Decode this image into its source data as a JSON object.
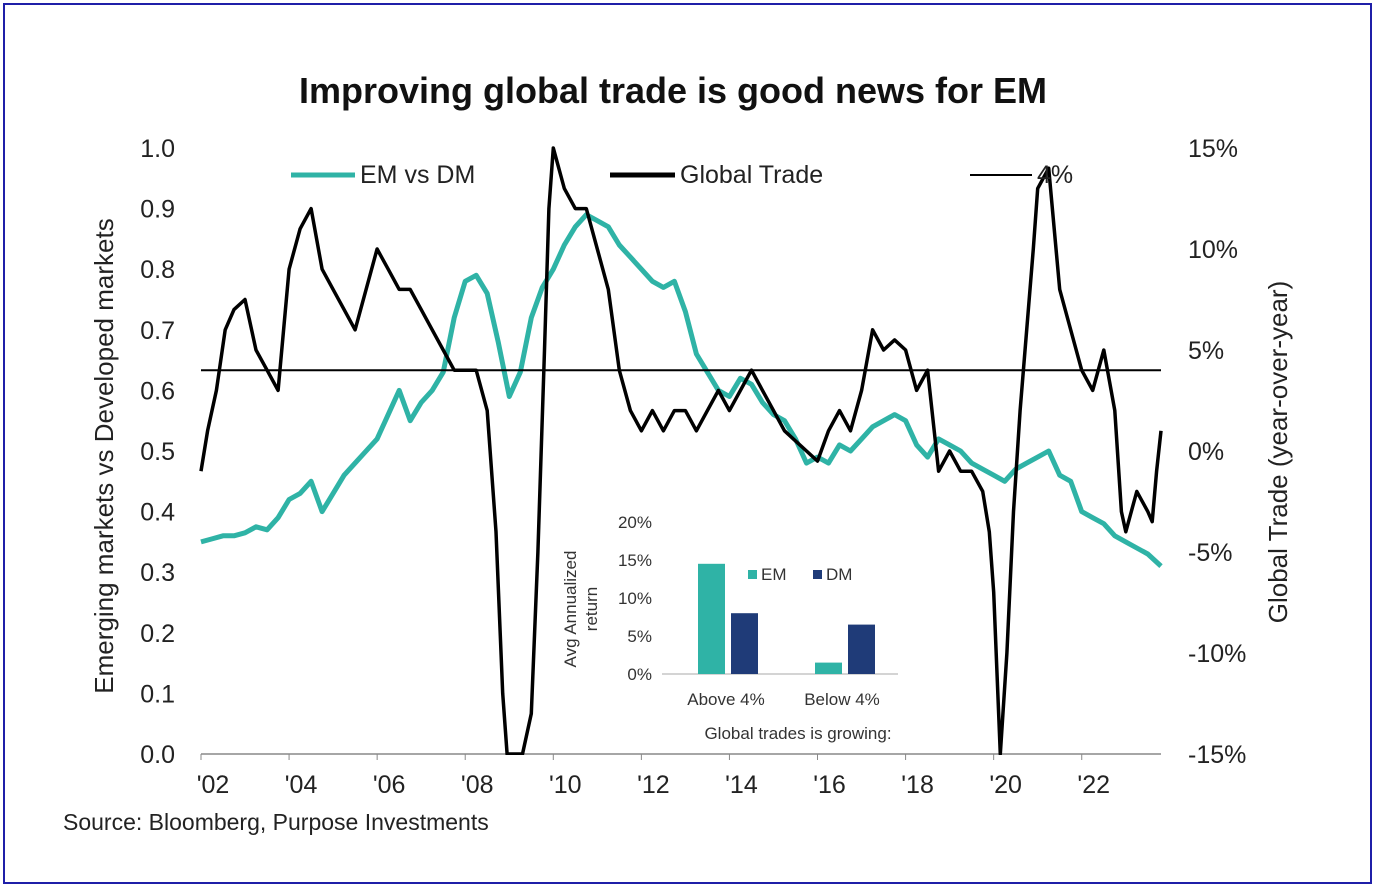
{
  "colors": {
    "em": "#2fb3a6",
    "dm": "#1f3b78",
    "trade": "#000000",
    "frame": "#1f1fa8"
  },
  "source": "Source: Bloomberg, Purpose Investments",
  "chart_data": [
    {
      "type": "line",
      "title": "Improving global trade is good news for EM",
      "ylabel_left": "Emerging markets vs Developed markets",
      "ylabel_right": "Global Trade (year-over-year)",
      "x_ticks": [
        "'02",
        "'04",
        "'06",
        "'08",
        "'10",
        "'12",
        "'14",
        "'16",
        "'18",
        "'20",
        "'22"
      ],
      "x_tick_years": [
        2002,
        2004,
        2006,
        2008,
        2010,
        2012,
        2014,
        2016,
        2018,
        2020,
        2022
      ],
      "xlim": [
        2002,
        2023.8
      ],
      "ylim_left": [
        0.0,
        1.0
      ],
      "ylim_right": [
        -15,
        15
      ],
      "y_ticks_left": [
        "0.0",
        "0.1",
        "0.2",
        "0.3",
        "0.4",
        "0.5",
        "0.6",
        "0.7",
        "0.8",
        "0.9",
        "1.0"
      ],
      "y_ticks_right": [
        "-15%",
        "-10%",
        "-5%",
        "0%",
        "5%",
        "10%",
        "15%"
      ],
      "legend": [
        "EM vs DM",
        "Global Trade",
        "4%"
      ],
      "legend_position": "top",
      "grid": false,
      "series": [
        {
          "name": "EM vs DM",
          "axis": "left",
          "points": [
            [
              2002.0,
              0.35
            ],
            [
              2002.25,
              0.355
            ],
            [
              2002.5,
              0.36
            ],
            [
              2002.75,
              0.36
            ],
            [
              2003.0,
              0.365
            ],
            [
              2003.25,
              0.375
            ],
            [
              2003.5,
              0.37
            ],
            [
              2003.75,
              0.39
            ],
            [
              2004.0,
              0.42
            ],
            [
              2004.25,
              0.43
            ],
            [
              2004.5,
              0.45
            ],
            [
              2004.75,
              0.4
            ],
            [
              2005.0,
              0.43
            ],
            [
              2005.25,
              0.46
            ],
            [
              2005.5,
              0.48
            ],
            [
              2005.75,
              0.5
            ],
            [
              2006.0,
              0.52
            ],
            [
              2006.25,
              0.56
            ],
            [
              2006.5,
              0.6
            ],
            [
              2006.75,
              0.55
            ],
            [
              2007.0,
              0.58
            ],
            [
              2007.25,
              0.6
            ],
            [
              2007.5,
              0.63
            ],
            [
              2007.75,
              0.72
            ],
            [
              2008.0,
              0.78
            ],
            [
              2008.25,
              0.79
            ],
            [
              2008.5,
              0.76
            ],
            [
              2008.75,
              0.68
            ],
            [
              2009.0,
              0.59
            ],
            [
              2009.25,
              0.63
            ],
            [
              2009.5,
              0.72
            ],
            [
              2009.75,
              0.77
            ],
            [
              2010.0,
              0.8
            ],
            [
              2010.25,
              0.84
            ],
            [
              2010.5,
              0.87
            ],
            [
              2010.75,
              0.89
            ],
            [
              2011.0,
              0.88
            ],
            [
              2011.25,
              0.87
            ],
            [
              2011.5,
              0.84
            ],
            [
              2011.75,
              0.82
            ],
            [
              2012.0,
              0.8
            ],
            [
              2012.25,
              0.78
            ],
            [
              2012.5,
              0.77
            ],
            [
              2012.75,
              0.78
            ],
            [
              2013.0,
              0.73
            ],
            [
              2013.25,
              0.66
            ],
            [
              2013.5,
              0.63
            ],
            [
              2013.75,
              0.6
            ],
            [
              2014.0,
              0.59
            ],
            [
              2014.25,
              0.62
            ],
            [
              2014.5,
              0.61
            ],
            [
              2014.75,
              0.58
            ],
            [
              2015.0,
              0.56
            ],
            [
              2015.25,
              0.55
            ],
            [
              2015.5,
              0.52
            ],
            [
              2015.75,
              0.48
            ],
            [
              2016.0,
              0.49
            ],
            [
              2016.25,
              0.48
            ],
            [
              2016.5,
              0.51
            ],
            [
              2016.75,
              0.5
            ],
            [
              2017.0,
              0.52
            ],
            [
              2017.25,
              0.54
            ],
            [
              2017.5,
              0.55
            ],
            [
              2017.75,
              0.56
            ],
            [
              2018.0,
              0.55
            ],
            [
              2018.25,
              0.51
            ],
            [
              2018.5,
              0.49
            ],
            [
              2018.75,
              0.52
            ],
            [
              2019.0,
              0.51
            ],
            [
              2019.25,
              0.5
            ],
            [
              2019.5,
              0.48
            ],
            [
              2019.75,
              0.47
            ],
            [
              2020.0,
              0.46
            ],
            [
              2020.25,
              0.45
            ],
            [
              2020.5,
              0.47
            ],
            [
              2020.75,
              0.48
            ],
            [
              2021.0,
              0.49
            ],
            [
              2021.25,
              0.5
            ],
            [
              2021.5,
              0.46
            ],
            [
              2021.75,
              0.45
            ],
            [
              2022.0,
              0.4
            ],
            [
              2022.25,
              0.39
            ],
            [
              2022.5,
              0.38
            ],
            [
              2022.75,
              0.36
            ],
            [
              2023.0,
              0.35
            ],
            [
              2023.25,
              0.34
            ],
            [
              2023.5,
              0.33
            ],
            [
              2023.8,
              0.31
            ]
          ]
        },
        {
          "name": "Global Trade",
          "axis": "right",
          "points": [
            [
              2002.0,
              -1
            ],
            [
              2002.15,
              1
            ],
            [
              2002.35,
              3
            ],
            [
              2002.55,
              6
            ],
            [
              2002.75,
              7
            ],
            [
              2003.0,
              7.5
            ],
            [
              2003.25,
              5
            ],
            [
              2003.5,
              4
            ],
            [
              2003.75,
              3
            ],
            [
              2004.0,
              9
            ],
            [
              2004.25,
              11
            ],
            [
              2004.5,
              12
            ],
            [
              2004.75,
              9
            ],
            [
              2005.0,
              8
            ],
            [
              2005.25,
              7
            ],
            [
              2005.5,
              6
            ],
            [
              2005.75,
              8
            ],
            [
              2006.0,
              10
            ],
            [
              2006.25,
              9
            ],
            [
              2006.5,
              8
            ],
            [
              2006.75,
              8
            ],
            [
              2007.0,
              7
            ],
            [
              2007.25,
              6
            ],
            [
              2007.5,
              5
            ],
            [
              2007.75,
              4
            ],
            [
              2008.0,
              4
            ],
            [
              2008.25,
              4
            ],
            [
              2008.5,
              2
            ],
            [
              2008.7,
              -4
            ],
            [
              2008.85,
              -12
            ],
            [
              2008.95,
              -15
            ],
            [
              2009.3,
              -15
            ],
            [
              2009.5,
              -13
            ],
            [
              2009.65,
              -5
            ],
            [
              2009.8,
              5
            ],
            [
              2009.9,
              12
            ],
            [
              2010.0,
              15
            ],
            [
              2010.25,
              13
            ],
            [
              2010.5,
              12
            ],
            [
              2010.75,
              12
            ],
            [
              2011.0,
              10
            ],
            [
              2011.25,
              8
            ],
            [
              2011.5,
              4
            ],
            [
              2011.75,
              2
            ],
            [
              2012.0,
              1
            ],
            [
              2012.25,
              2
            ],
            [
              2012.5,
              1
            ],
            [
              2012.75,
              2
            ],
            [
              2013.0,
              2
            ],
            [
              2013.25,
              1
            ],
            [
              2013.5,
              2
            ],
            [
              2013.75,
              3
            ],
            [
              2014.0,
              2
            ],
            [
              2014.25,
              3
            ],
            [
              2014.5,
              4
            ],
            [
              2014.75,
              3
            ],
            [
              2015.0,
              2
            ],
            [
              2015.25,
              1
            ],
            [
              2015.5,
              0.5
            ],
            [
              2015.75,
              0
            ],
            [
              2016.0,
              -0.5
            ],
            [
              2016.25,
              1
            ],
            [
              2016.5,
              2
            ],
            [
              2016.75,
              1
            ],
            [
              2017.0,
              3
            ],
            [
              2017.25,
              6
            ],
            [
              2017.5,
              5
            ],
            [
              2017.75,
              5.5
            ],
            [
              2018.0,
              5
            ],
            [
              2018.25,
              3
            ],
            [
              2018.5,
              4
            ],
            [
              2018.75,
              -1
            ],
            [
              2019.0,
              0
            ],
            [
              2019.25,
              -1
            ],
            [
              2019.5,
              -1
            ],
            [
              2019.75,
              -2
            ],
            [
              2019.9,
              -4
            ],
            [
              2020.0,
              -7
            ],
            [
              2020.15,
              -15
            ],
            [
              2020.3,
              -10
            ],
            [
              2020.45,
              -3
            ],
            [
              2020.6,
              2
            ],
            [
              2020.75,
              6
            ],
            [
              2020.9,
              10
            ],
            [
              2021.0,
              13
            ],
            [
              2021.25,
              14
            ],
            [
              2021.5,
              8
            ],
            [
              2021.75,
              6
            ],
            [
              2022.0,
              4
            ],
            [
              2022.25,
              3
            ],
            [
              2022.5,
              5
            ],
            [
              2022.75,
              2
            ],
            [
              2022.9,
              -3
            ],
            [
              2023.0,
              -4
            ],
            [
              2023.25,
              -2
            ],
            [
              2023.5,
              -3
            ],
            [
              2023.6,
              -3.5
            ],
            [
              2023.7,
              -1
            ],
            [
              2023.8,
              1
            ]
          ]
        },
        {
          "name": "4%",
          "axis": "right",
          "points": [
            [
              2002.0,
              4
            ],
            [
              2023.8,
              4
            ]
          ]
        }
      ]
    },
    {
      "type": "bar",
      "ylabel": "Avg Annualized return",
      "xlabel": "Global trades is growing:",
      "categories": [
        "Above 4%",
        "Below 4%"
      ],
      "series": [
        {
          "name": "EM",
          "values": [
            14.5,
            1.5
          ]
        },
        {
          "name": "DM",
          "values": [
            8,
            6.5
          ]
        }
      ],
      "ylim": [
        0,
        20
      ],
      "y_ticks": [
        "0%",
        "5%",
        "10%",
        "15%",
        "20%"
      ],
      "legend_position": "top-right",
      "grid": false
    }
  ]
}
